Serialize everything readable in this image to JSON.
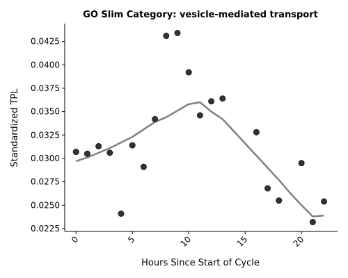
{
  "chart_data": {
    "type": "scatter",
    "title": "GO Slim Category: vesicle-mediated transport",
    "xlabel": "Hours Since Start of Cycle",
    "ylabel": "Standardized TPL",
    "xlim": [
      -1,
      23.2
    ],
    "ylim": [
      0.0222,
      0.0444
    ],
    "x_ticks": [
      0,
      5,
      10,
      15,
      20
    ],
    "x_tick_labels": [
      "0",
      "5",
      "10",
      "15",
      "20"
    ],
    "y_ticks": [
      0.0225,
      0.025,
      0.0275,
      0.03,
      0.0325,
      0.035,
      0.0375,
      0.04,
      0.0425
    ],
    "y_tick_labels": [
      "0.0225",
      "0.0250",
      "0.0275",
      "0.0300",
      "0.0325",
      "0.0350",
      "0.0375",
      "0.0400",
      "0.0425"
    ],
    "grid": false,
    "series": [
      {
        "kind": "points",
        "color": "#333333",
        "x": [
          0,
          1,
          2,
          3,
          4,
          5,
          6,
          7,
          8,
          9,
          10,
          11,
          12,
          13,
          16,
          17,
          18,
          20,
          21,
          22
        ],
        "y": [
          0.0307,
          0.0305,
          0.0313,
          0.0306,
          0.0241,
          0.0314,
          0.0291,
          0.0342,
          0.0431,
          0.0434,
          0.0392,
          0.0346,
          0.0361,
          0.0364,
          0.0328,
          0.0268,
          0.0255,
          0.0295,
          0.0232,
          0.0254
        ]
      },
      {
        "kind": "line",
        "color": "#808080",
        "x": [
          0,
          1,
          2,
          3,
          4,
          5,
          6,
          7,
          8,
          9,
          10,
          11,
          12,
          13,
          14,
          15,
          16,
          17,
          18,
          19,
          20,
          21,
          22
        ],
        "y": [
          0.0297,
          0.0301,
          0.0306,
          0.0311,
          0.0317,
          0.0323,
          0.0331,
          0.0339,
          0.0344,
          0.0351,
          0.0358,
          0.036,
          0.035,
          0.0342,
          0.0329,
          0.0316,
          0.0303,
          0.029,
          0.0277,
          0.0263,
          0.025,
          0.0238,
          0.0239
        ]
      }
    ]
  }
}
